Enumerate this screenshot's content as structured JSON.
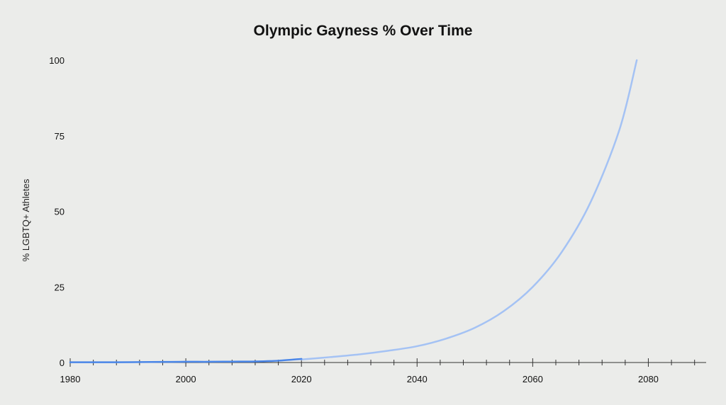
{
  "chart_data": {
    "type": "line",
    "title": "Olympic Gayness % Over Time",
    "xlabel": "",
    "ylabel": "% LGBTQ+ Athletes",
    "xlim": [
      1980,
      2090
    ],
    "ylim": [
      0,
      100
    ],
    "x_ticks": [
      1980,
      2000,
      2020,
      2040,
      2060,
      2080
    ],
    "y_ticks": [
      0,
      25,
      50,
      75,
      100
    ],
    "x_minor_step": 4,
    "grid": false,
    "legend": "none",
    "series": [
      {
        "role": "historical",
        "color": "#4a86e8",
        "points": [
          [
            1980,
            0.1
          ],
          [
            1984,
            0.1
          ],
          [
            1988,
            0.1
          ],
          [
            1992,
            0.15
          ],
          [
            1996,
            0.2
          ],
          [
            2000,
            0.25
          ],
          [
            2004,
            0.25
          ],
          [
            2008,
            0.3
          ],
          [
            2012,
            0.35
          ],
          [
            2016,
            0.6
          ],
          [
            2020,
            1.2
          ]
        ]
      },
      {
        "role": "projection",
        "color": "#a4c2f4",
        "points": [
          [
            2020,
            1.0
          ],
          [
            2025,
            1.8
          ],
          [
            2030,
            2.7
          ],
          [
            2035,
            3.9
          ],
          [
            2040,
            5.4
          ],
          [
            2045,
            7.9
          ],
          [
            2050,
            11.5
          ],
          [
            2055,
            17.0
          ],
          [
            2060,
            25.0
          ],
          [
            2065,
            36.5
          ],
          [
            2070,
            53.0
          ],
          [
            2075,
            77.0
          ],
          [
            2078,
            100.0
          ]
        ]
      }
    ]
  }
}
